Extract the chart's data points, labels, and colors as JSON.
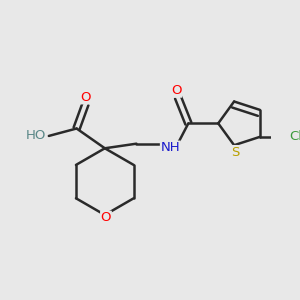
{
  "background_color": "#e8e8e8",
  "bond_color": "#2a2a2a",
  "atoms": {
    "O_acid_double": {
      "label": "O",
      "color": "#ff0000"
    },
    "HO": {
      "label": "HO",
      "color": "#5a8888"
    },
    "H": {
      "label": "H",
      "color": "#5a8888"
    },
    "O_ring": {
      "label": "O",
      "color": "#ff0000"
    },
    "NH": {
      "label": "NH",
      "color": "#1a1acc"
    },
    "O_amide": {
      "label": "O",
      "color": "#ff0000"
    },
    "S": {
      "label": "S",
      "color": "#b8a000"
    },
    "Cl": {
      "label": "Cl",
      "color": "#3a9a3a"
    }
  },
  "figsize": [
    3.0,
    3.0
  ],
  "dpi": 100,
  "xlim": [
    -0.5,
    4.2
  ],
  "ylim": [
    0.2,
    3.8
  ]
}
